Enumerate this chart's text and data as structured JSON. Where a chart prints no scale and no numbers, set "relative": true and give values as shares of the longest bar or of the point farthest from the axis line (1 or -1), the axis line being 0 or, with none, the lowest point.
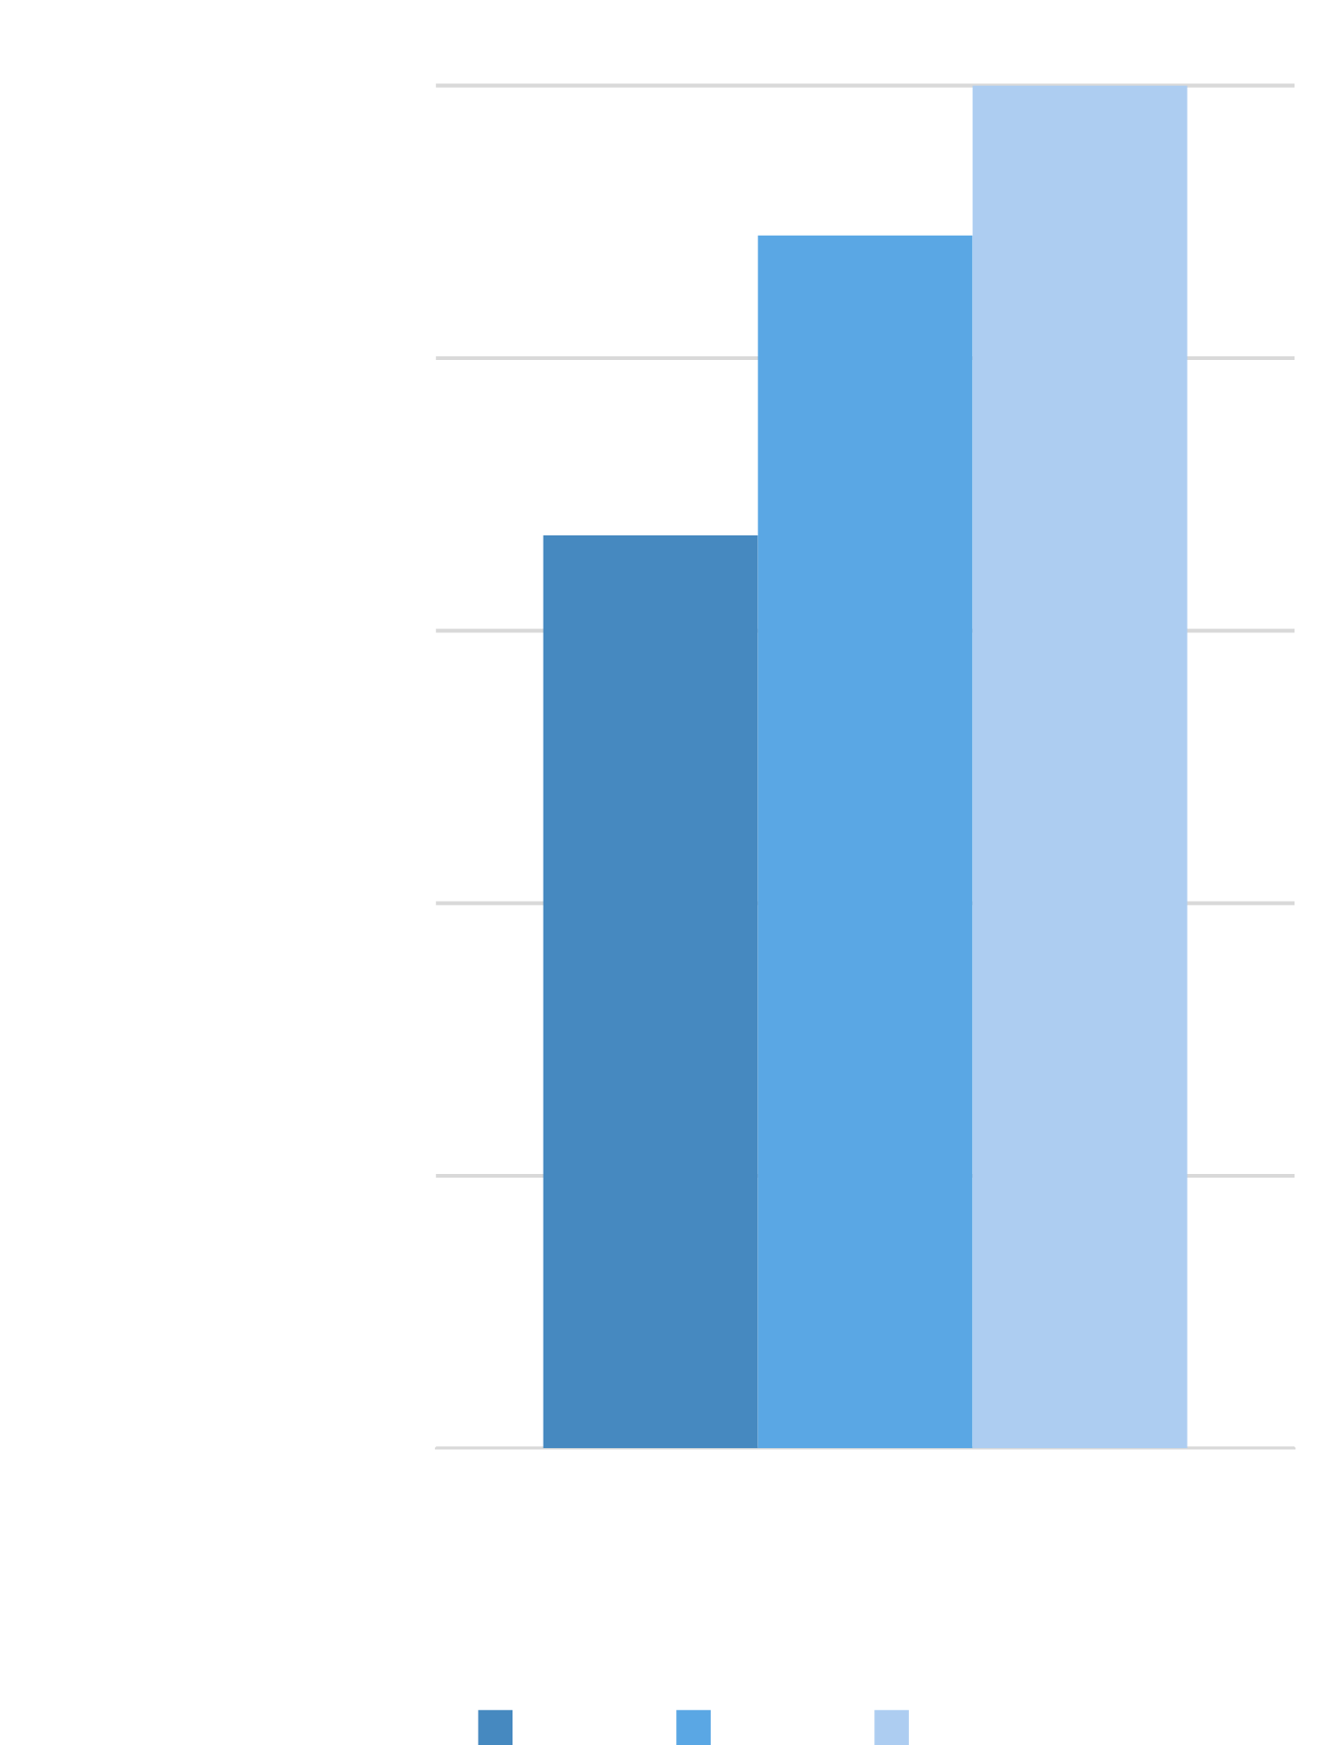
{
  "chart_data": {
    "type": "bar",
    "relative": true,
    "categories": [
      null
    ],
    "series": [
      {
        "color": "#4689c0",
        "values": [
          0.67
        ]
      },
      {
        "color": "#5aa7e4",
        "values": [
          0.89
        ]
      },
      {
        "color": "#adcdf1",
        "values": [
          1
        ]
      }
    ],
    "grid": "y"
  }
}
